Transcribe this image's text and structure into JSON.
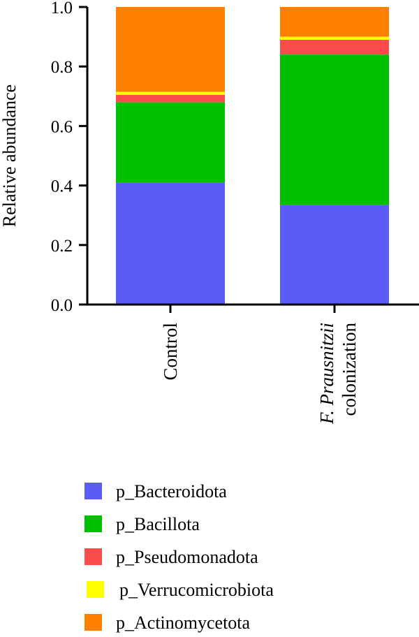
{
  "chart_data": {
    "type": "bar",
    "stacked": true,
    "ylabel": "Relative abundance",
    "ylim": [
      0,
      1.0
    ],
    "yticks": [
      "0.0",
      "0.2",
      "0.4",
      "0.6",
      "0.8",
      "1.0"
    ],
    "categories": [
      {
        "label": "Control",
        "italic_prefix": "",
        "label_line2": ""
      },
      {
        "label": "",
        "italic_prefix": "F. Prausnitzii",
        "label_line2": "colonization"
      }
    ],
    "series": [
      {
        "name": "p_Bacteroidota",
        "color": "#5b5cf5",
        "values": [
          0.41,
          0.335
        ]
      },
      {
        "name": "p_Bacillota",
        "color": "#00c000",
        "values": [
          0.27,
          0.505
        ]
      },
      {
        "name": "p_Pseudomonadota",
        "color": "#fb4b4b",
        "values": [
          0.025,
          0.05
        ]
      },
      {
        "name": "p_Verrucomicrobiota",
        "color": "#ffff00",
        "values": [
          0.01,
          0.01
        ]
      },
      {
        "name": "p_Actinomycetota",
        "color": "#ff8000",
        "values": [
          0.285,
          0.1
        ]
      }
    ],
    "grid": false,
    "legend_position": "bottom"
  }
}
